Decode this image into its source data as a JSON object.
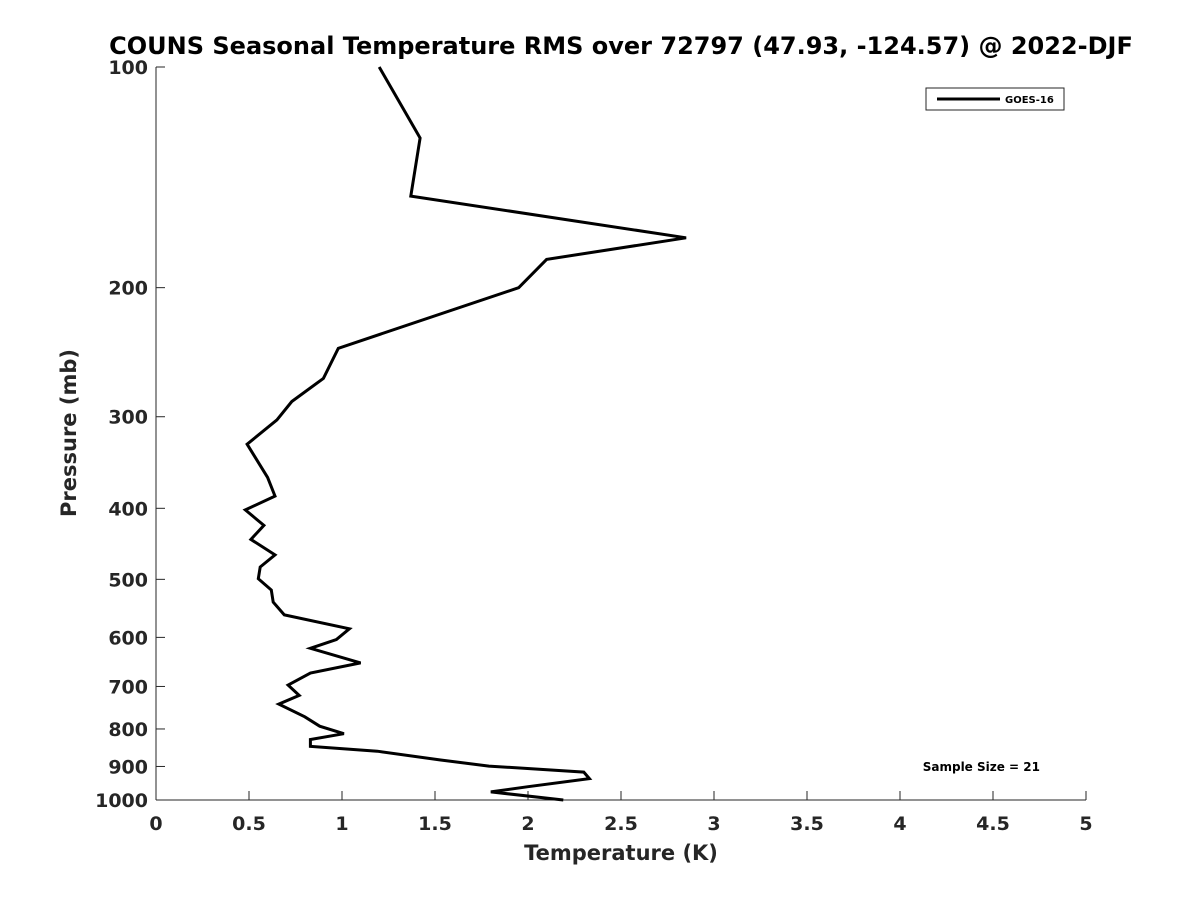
{
  "chart_data": {
    "type": "line",
    "title": "COUNS Seasonal Temperature RMS over 72797 (47.93, -124.57) @ 2022-DJF",
    "xlabel": "Temperature (K)",
    "ylabel": "Pressure (mb)",
    "xlim": [
      0,
      5
    ],
    "ylim": [
      100,
      1000
    ],
    "y_scale": "log",
    "y_reversed": true,
    "grid": false,
    "x_ticks": [
      0,
      0.5,
      1,
      1.5,
      2,
      2.5,
      3,
      3.5,
      4,
      4.5,
      5
    ],
    "x_tick_labels": [
      "0",
      "0.5",
      "1",
      "1.5",
      "2",
      "2.5",
      "3",
      "3.5",
      "4",
      "4.5",
      "5"
    ],
    "y_ticks": [
      100,
      200,
      300,
      400,
      500,
      600,
      700,
      800,
      900,
      1000
    ],
    "y_tick_labels": [
      "100",
      "200",
      "300",
      "400",
      "500",
      "600",
      "700",
      "800",
      "900",
      "1000"
    ],
    "legend_position": "top-right",
    "series": [
      {
        "name": "GOES-16",
        "color": "#000000",
        "points": [
          [
            1.2,
            100
          ],
          [
            1.42,
            125
          ],
          [
            1.37,
            150
          ],
          [
            2.85,
            171
          ],
          [
            2.1,
            183
          ],
          [
            1.95,
            200
          ],
          [
            0.98,
            242
          ],
          [
            0.9,
            266
          ],
          [
            0.73,
            286
          ],
          [
            0.65,
            303
          ],
          [
            0.49,
            327
          ],
          [
            0.6,
            363
          ],
          [
            0.64,
            385
          ],
          [
            0.48,
            402
          ],
          [
            0.58,
            422
          ],
          [
            0.51,
            441
          ],
          [
            0.64,
            463
          ],
          [
            0.56,
            481
          ],
          [
            0.55,
            499
          ],
          [
            0.62,
            517
          ],
          [
            0.63,
            537
          ],
          [
            0.69,
            559
          ],
          [
            1.04,
            584
          ],
          [
            0.97,
            604
          ],
          [
            0.83,
            621
          ],
          [
            1.1,
            650
          ],
          [
            0.83,
            671
          ],
          [
            0.71,
            697
          ],
          [
            0.77,
            720
          ],
          [
            0.66,
            740
          ],
          [
            0.8,
            770
          ],
          [
            0.88,
            793
          ],
          [
            1.01,
            812
          ],
          [
            0.83,
            827
          ],
          [
            0.83,
            845
          ],
          [
            1.19,
            858
          ],
          [
            1.53,
            882
          ],
          [
            1.79,
            899
          ],
          [
            2.3,
            916
          ],
          [
            2.33,
            935
          ],
          [
            2.0,
            959
          ],
          [
            1.8,
            975
          ],
          [
            2.19,
            1000
          ]
        ]
      }
    ],
    "annotations": [
      "Sample Size = 21"
    ]
  }
}
